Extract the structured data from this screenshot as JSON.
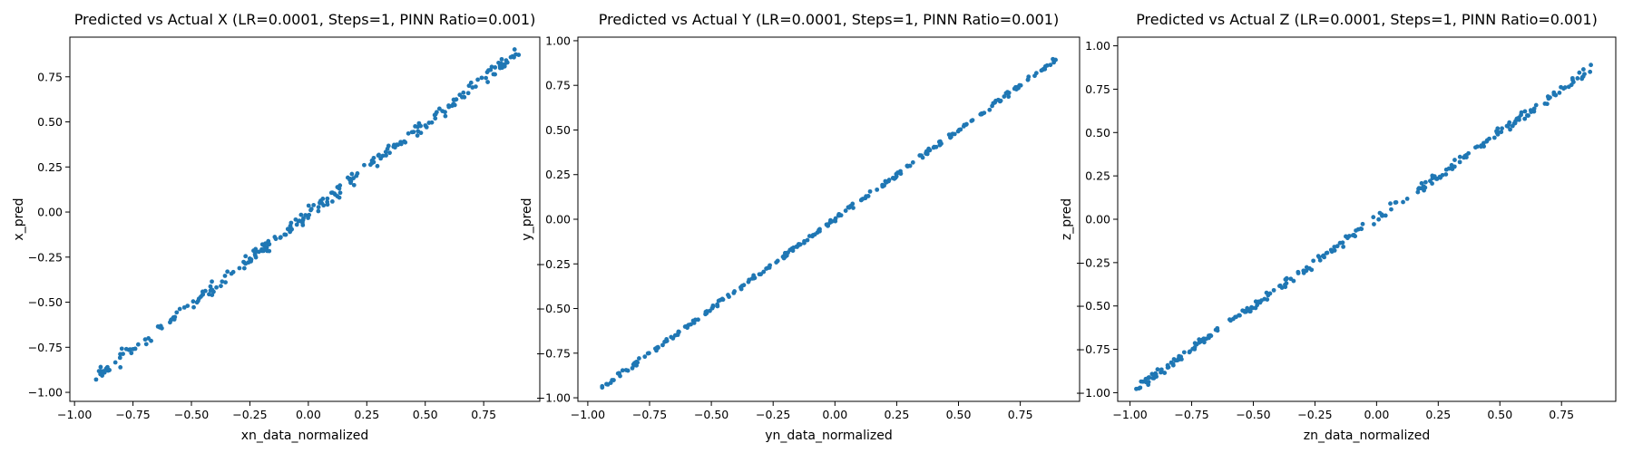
{
  "chart_data": [
    {
      "type": "scatter",
      "title": "Predicted vs Actual X (LR=0.0001, Steps=1, PINN Ratio=0.001)",
      "xlabel": "xn_data_normalized",
      "ylabel": "x_pred",
      "xlim": [
        -1.02,
        0.99
      ],
      "ylim": [
        -1.05,
        0.97
      ],
      "xticks": [
        -1.0,
        -0.75,
        -0.5,
        -0.25,
        0.0,
        0.25,
        0.5,
        0.75
      ],
      "yticks": [
        -1.0,
        -0.75,
        -0.5,
        -0.25,
        0.0,
        0.25,
        0.5,
        0.75
      ],
      "xtick_labels": [
        "−1.00",
        "−0.75",
        "−0.50",
        "−0.25",
        "0.00",
        "0.25",
        "0.50",
        "0.75"
      ],
      "ytick_labels": [
        "−1.00",
        "−0.75",
        "−0.50",
        "−0.25",
        "0.00",
        "0.25",
        "0.50",
        "0.75"
      ],
      "grid": false,
      "color": "#1f77b4",
      "trend": {
        "x_start": -0.93,
        "x_end": 0.9,
        "slope": 1.0,
        "intercept": -0.01,
        "spread": 0.025
      },
      "points": {
        "count": 260,
        "seed": 11
      }
    },
    {
      "type": "scatter",
      "title": "Predicted vs Actual Y (LR=0.0001, Steps=1, PINN Ratio=0.001)",
      "xlabel": "yn_data_normalized",
      "ylabel": "y_pred",
      "xlim": [
        -1.04,
        0.99
      ],
      "ylim": [
        -1.02,
        1.02
      ],
      "xticks": [
        -1.0,
        -0.75,
        -0.5,
        -0.25,
        0.0,
        0.25,
        0.5,
        0.75
      ],
      "yticks": [
        -1.0,
        -0.75,
        -0.5,
        -0.25,
        0.0,
        0.25,
        0.5,
        0.75,
        1.0
      ],
      "xtick_labels": [
        "−1.00",
        "−0.75",
        "−0.50",
        "−0.25",
        "0.00",
        "0.25",
        "0.50",
        "0.75"
      ],
      "ytick_labels": [
        "−1.00",
        "−0.75",
        "−0.50",
        "−0.25",
        "0.00",
        "0.25",
        "0.50",
        "0.75",
        "1.00"
      ],
      "grid": false,
      "color": "#1f77b4",
      "trend": {
        "x_start": -0.95,
        "x_end": 0.9,
        "slope": 1.0,
        "intercept": 0.0,
        "spread": 0.01
      },
      "points": {
        "count": 260,
        "seed": 23
      }
    },
    {
      "type": "scatter",
      "title": "Predicted vs Actual Z (LR=0.0001, Steps=1, PINN Ratio=0.001)",
      "xlabel": "zn_data_normalized",
      "ylabel": "z_pred",
      "xlim": [
        -1.05,
        0.97
      ],
      "ylim": [
        -1.05,
        1.05
      ],
      "xticks": [
        -1.0,
        -0.75,
        -0.5,
        -0.25,
        0.0,
        0.25,
        0.5,
        0.75
      ],
      "yticks": [
        -1.0,
        -0.75,
        -0.5,
        -0.25,
        0.0,
        0.25,
        0.5,
        0.75,
        1.0
      ],
      "xtick_labels": [
        "−1.00",
        "−0.75",
        "−0.50",
        "−0.25",
        "0.00",
        "0.25",
        "0.50",
        "0.75"
      ],
      "ytick_labels": [
        "−1.00",
        "−0.75",
        "−0.50",
        "−0.25",
        "0.00",
        "0.25",
        "0.50",
        "0.75",
        "1.00"
      ],
      "grid": false,
      "color": "#1f77b4",
      "trend": {
        "x_start": -0.98,
        "x_end": 0.88,
        "slope": 1.0,
        "intercept": 0.0,
        "spread": 0.018
      },
      "points": {
        "count": 260,
        "seed": 37
      }
    }
  ]
}
